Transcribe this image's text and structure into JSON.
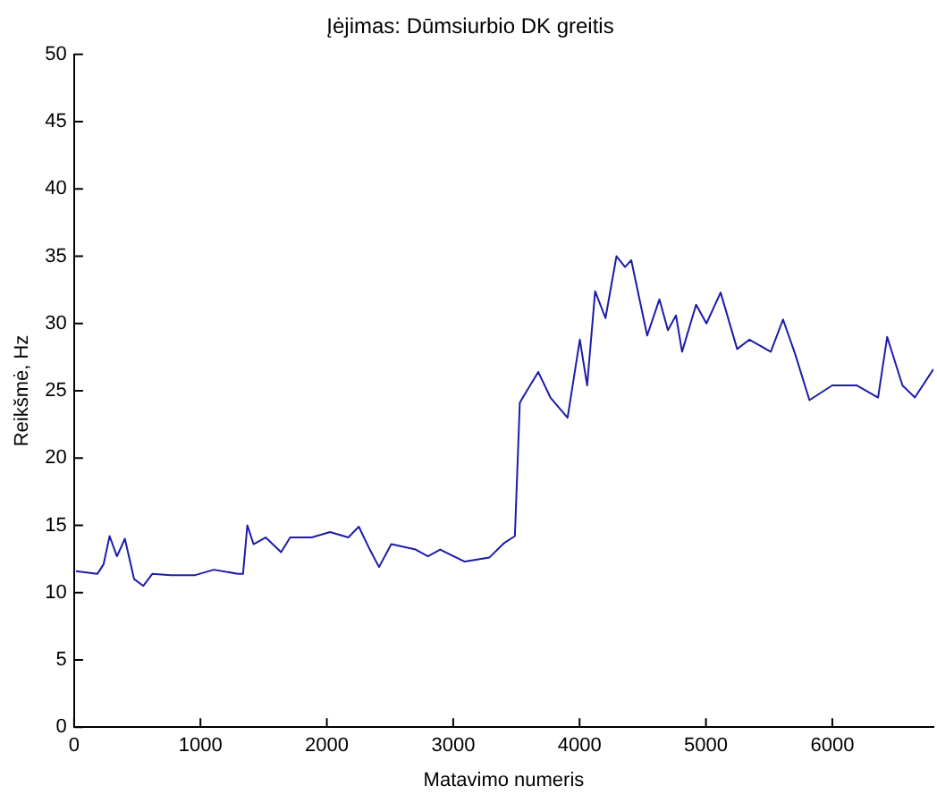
{
  "chart_data": {
    "type": "line",
    "title": "Įėjimas: Dūmsiurbio DK greitis",
    "xlabel": "Matavimo numeris",
    "ylabel": "Reikšmė, Hz",
    "xlim": [
      0,
      6800
    ],
    "xticks": [
      0,
      1000,
      2000,
      3000,
      4000,
      5000,
      6000
    ],
    "ylim": [
      0,
      50
    ],
    "yticks": [
      0,
      5,
      10,
      15,
      20,
      25,
      30,
      35,
      40,
      45,
      50
    ],
    "grid": false,
    "legend": false,
    "series": [
      {
        "color": "#1c1ca8",
        "x": [
          15,
          185,
          233,
          281,
          339,
          402,
          475,
          548,
          620,
          766,
          959,
          1105,
          1298,
          1337,
          1371,
          1420,
          1516,
          1638,
          1710,
          1880,
          2025,
          2170,
          2253,
          2340,
          2413,
          2510,
          2703,
          2800,
          2897,
          3091,
          3285,
          3405,
          3488,
          3527,
          3551,
          3673,
          3769,
          3905,
          4002,
          4060,
          4123,
          4205,
          4292,
          4360,
          4409,
          4535,
          4632,
          4699,
          4763,
          4811,
          4922,
          5004,
          5116,
          5247,
          5344,
          5513,
          5610,
          5707,
          5819,
          5999,
          6192,
          6362,
          6434,
          6555,
          6653,
          6800
        ],
        "values": [
          11.6,
          11.4,
          12.1,
          14.2,
          12.7,
          14.0,
          11.0,
          10.5,
          11.4,
          11.3,
          11.3,
          11.7,
          11.4,
          11.4,
          15.0,
          13.6,
          14.1,
          13.0,
          14.1,
          14.1,
          14.5,
          14.1,
          14.9,
          13.2,
          11.9,
          13.6,
          13.2,
          12.7,
          13.2,
          12.3,
          12.6,
          13.7,
          14.2,
          24.1,
          24.5,
          26.4,
          24.5,
          23.0,
          28.8,
          25.4,
          32.4,
          30.4,
          35.0,
          34.2,
          34.7,
          29.1,
          31.8,
          29.5,
          30.6,
          27.9,
          31.4,
          30.0,
          32.3,
          28.1,
          28.8,
          27.9,
          30.3,
          27.7,
          24.3,
          25.4,
          25.4,
          24.5,
          29.0,
          25.4,
          24.5,
          26.6
        ]
      }
    ]
  }
}
